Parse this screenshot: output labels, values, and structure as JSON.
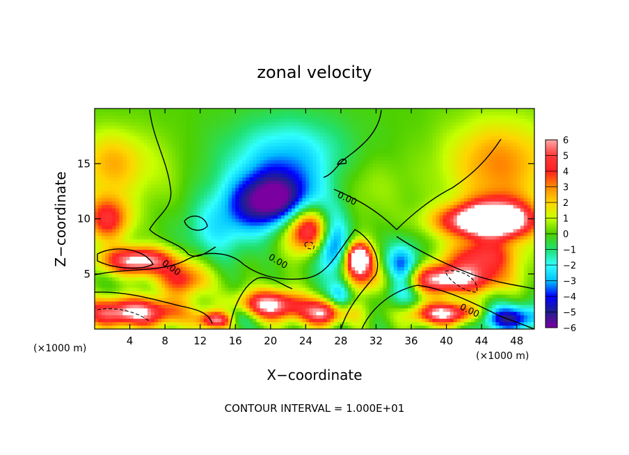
{
  "chart_data": {
    "type": "heatmap",
    "title": "zonal velocity",
    "xlabel": "X−coordinate",
    "ylabel": "Z−coordinate",
    "x_unit_left": "(×1000 m)",
    "x_unit_right": "(×1000 m)",
    "footer": "CONTOUR INTERVAL = 1.000E+01",
    "xlim": [
      0,
      50
    ],
    "ylim": [
      0,
      20
    ],
    "x_ticks": [
      4,
      8,
      12,
      16,
      20,
      24,
      28,
      32,
      36,
      40,
      44,
      48
    ],
    "y_ticks": [
      5,
      10,
      15
    ],
    "colorbar": {
      "range": [
        -6,
        6
      ],
      "ticks": [
        6,
        5,
        4,
        3,
        2,
        1,
        0,
        "−1",
        "−2",
        "−3",
        "−4",
        "−5",
        "−6"
      ],
      "colors": [
        "#ffa8a8",
        "#ff3a3a",
        "#ff2020",
        "#ff8a00",
        "#ffd400",
        "#c8ff00",
        "#4ed000",
        "#20e070",
        "#30ffff",
        "#00c0ff",
        "#0000ff",
        "#202090",
        "#7a00a0"
      ],
      "over_color": "#ffffff"
    },
    "contour_labels": [
      "0.00",
      "0.00",
      "0.00",
      "0.00"
    ],
    "features": [
      {
        "value": -5.5,
        "x": 20,
        "z": 11.5,
        "sx": 4.5,
        "sz": 2.5
      },
      {
        "value": -3,
        "x": 22,
        "z": 15,
        "sx": 7,
        "sz": 4
      },
      {
        "value": -2,
        "x": 14,
        "z": 9,
        "sx": 4,
        "sz": 3
      },
      {
        "value": 3,
        "x": 46,
        "z": 15,
        "sx": 6,
        "sz": 4
      },
      {
        "value": 5,
        "x": 46,
        "z": 10,
        "sx": 4,
        "sz": 2
      },
      {
        "value": 2.5,
        "x": 2,
        "z": 15,
        "sx": 4,
        "sz": 3
      },
      {
        "value": 4.5,
        "x": 1.5,
        "z": 10,
        "sx": 2.5,
        "sz": 2
      },
      {
        "value": 6.5,
        "x": 5,
        "z": 6.2,
        "sx": 4,
        "sz": 1.2
      },
      {
        "value": 6.5,
        "x": 4,
        "z": 1.5,
        "sx": 6,
        "sz": 1.3
      },
      {
        "value": 6.5,
        "x": 24.5,
        "z": 9,
        "sx": 2.8,
        "sz": 2
      },
      {
        "value": 6.5,
        "x": 44,
        "z": 9.8,
        "sx": 5,
        "sz": 1.4
      },
      {
        "value": 6.5,
        "x": 40,
        "z": 4.5,
        "sx": 6,
        "sz": 1.3
      },
      {
        "value": 6.5,
        "x": 20,
        "z": 2.2,
        "sx": 3.5,
        "sz": 1.3
      },
      {
        "value": 6.5,
        "x": 14,
        "z": 0.8,
        "sx": 2,
        "sz": 0.8
      },
      {
        "value": 6.5,
        "x": 26.5,
        "z": 1.5,
        "sx": 3,
        "sz": 1.2
      },
      {
        "value": 6.5,
        "x": 30,
        "z": 6.5,
        "sx": 1.2,
        "sz": 1.2
      },
      {
        "value": 6.5,
        "x": 40,
        "z": 1.4,
        "sx": 4,
        "sz": 1
      },
      {
        "value": -5,
        "x": 27,
        "z": 8,
        "sx": 2,
        "sz": 3
      },
      {
        "value": -5,
        "x": 35,
        "z": 5,
        "sx": 2,
        "sz": 2.5
      },
      {
        "value": -5,
        "x": 47,
        "z": 1,
        "sx": 4,
        "sz": 1.2
      },
      {
        "value": -4,
        "x": 28,
        "z": 2.5,
        "sx": 1.5,
        "sz": 2
      },
      {
        "value": -3,
        "x": 16,
        "z": 1,
        "sx": 2,
        "sz": 1
      },
      {
        "value": 4.5,
        "x": 30,
        "z": 5.5,
        "sx": 2,
        "sz": 2
      },
      {
        "value": 4.5,
        "x": 44,
        "z": 6.5,
        "sx": 4,
        "sz": 1.5
      },
      {
        "value": 4,
        "x": 10,
        "z": 4.5,
        "sx": 3,
        "sz": 1.5
      },
      {
        "value": 1,
        "x": 30,
        "z": 13,
        "sx": 5,
        "sz": 3
      },
      {
        "value": 0.5,
        "x": 8,
        "z": 14,
        "sx": 3,
        "sz": 4
      }
    ]
  }
}
